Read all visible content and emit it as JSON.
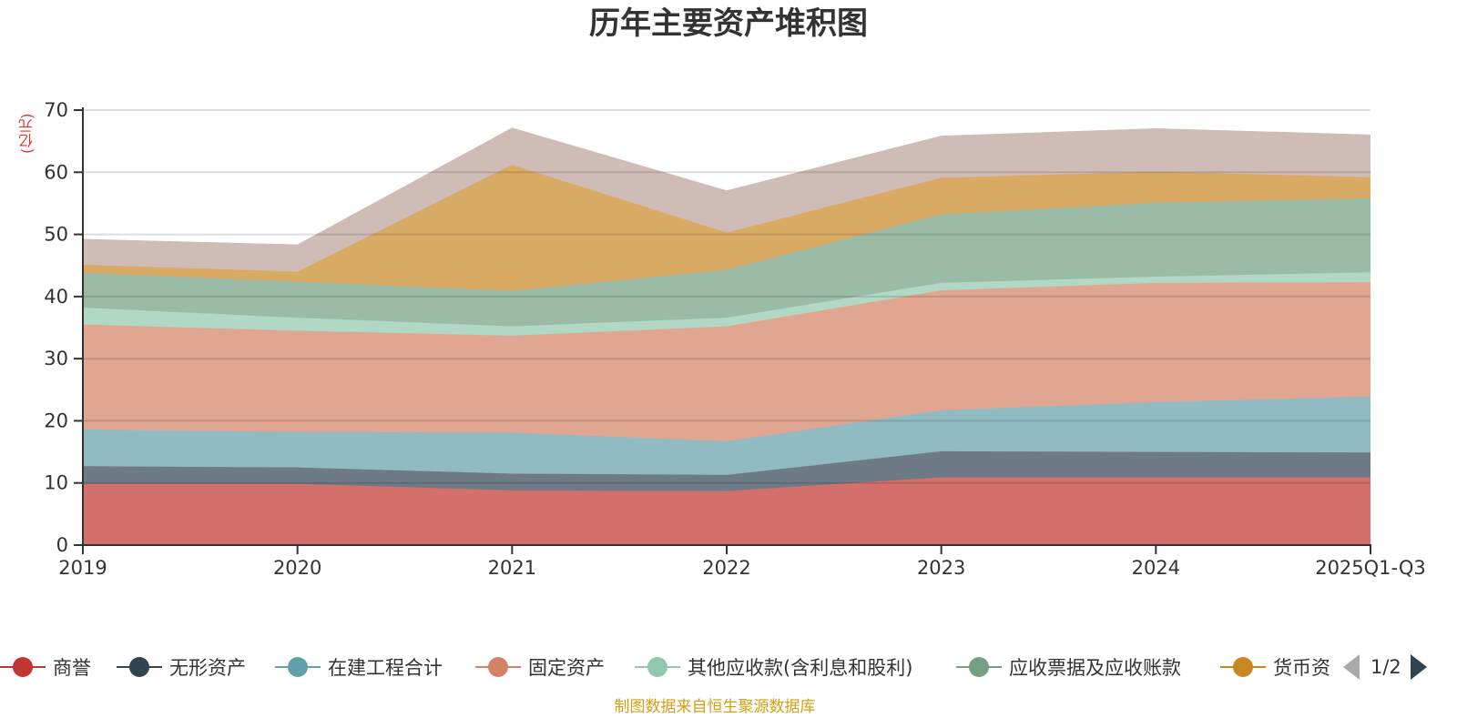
{
  "chart_data": {
    "type": "area",
    "stacked": true,
    "title": "历年主要资产堆积图",
    "ylabel": "(亿元)",
    "xlabel": "",
    "ylim": [
      0,
      70
    ],
    "yticks": [
      0,
      10,
      20,
      30,
      40,
      50,
      60,
      70
    ],
    "grid": true,
    "categories": [
      "2019",
      "2020",
      "2021",
      "2022",
      "2023",
      "2024",
      "2025Q1-Q3"
    ],
    "series": [
      {
        "name": "商誉",
        "color": "#c23531",
        "fill": "#d4706c",
        "values": [
          9.85,
          9.85,
          8.8,
          8.7,
          10.9,
          10.9,
          10.9
        ]
      },
      {
        "name": "无形资产",
        "color": "#2f4554",
        "fill": "#6e7b86",
        "values": [
          2.85,
          2.65,
          2.7,
          2.6,
          4.2,
          4.1,
          4.0
        ]
      },
      {
        "name": "在建工程合计",
        "color": "#61a0a8",
        "fill": "#90bbc2",
        "values": [
          5.9,
          5.7,
          6.6,
          5.4,
          6.6,
          8.0,
          9.0
        ]
      },
      {
        "name": "固定资产",
        "color": "#d48265",
        "fill": "#e0a692",
        "values": [
          16.9,
          16.3,
          15.6,
          18.5,
          19.3,
          19.2,
          18.4
        ]
      },
      {
        "name": "其他应收款(含利息和股利)",
        "color": "#91c7ae",
        "fill": "#b0d8c5",
        "values": [
          2.7,
          2.1,
          1.5,
          1.4,
          1.2,
          1.0,
          1.6
        ]
      },
      {
        "name": "应收票据及应收账款",
        "color": "#749f83",
        "fill": "#9bbba7",
        "values": [
          5.6,
          5.8,
          5.7,
          7.7,
          11.0,
          11.9,
          11.9
        ]
      },
      {
        "name": "货币资金",
        "color": "#ca8622",
        "fill": "#d9aa64",
        "values": [
          1.3,
          1.6,
          20.3,
          6.0,
          5.9,
          5.0,
          3.4
        ]
      },
      {
        "name": "",
        "color": "#bda29a",
        "fill": "#d0bcb6",
        "values": [
          4.1,
          4.3,
          5.9,
          6.7,
          6.7,
          6.9,
          6.8
        ]
      }
    ],
    "legend_position": "bottom"
  },
  "legend": {
    "items": [
      {
        "label": "商誉",
        "color": "#c23531"
      },
      {
        "label": "无形资产",
        "color": "#2f4554"
      },
      {
        "label": "在建工程合计",
        "color": "#61a0a8"
      },
      {
        "label": "固定资产",
        "color": "#d48265"
      },
      {
        "label": "其他应收款(含利息和股利)",
        "color": "#91c7ae"
      },
      {
        "label": "应收票据及应收账款",
        "color": "#749f83"
      },
      {
        "label": "货币资",
        "color": "#ca8622"
      }
    ],
    "page": "1/2"
  },
  "source": "制图数据来自恒生聚源数据库"
}
